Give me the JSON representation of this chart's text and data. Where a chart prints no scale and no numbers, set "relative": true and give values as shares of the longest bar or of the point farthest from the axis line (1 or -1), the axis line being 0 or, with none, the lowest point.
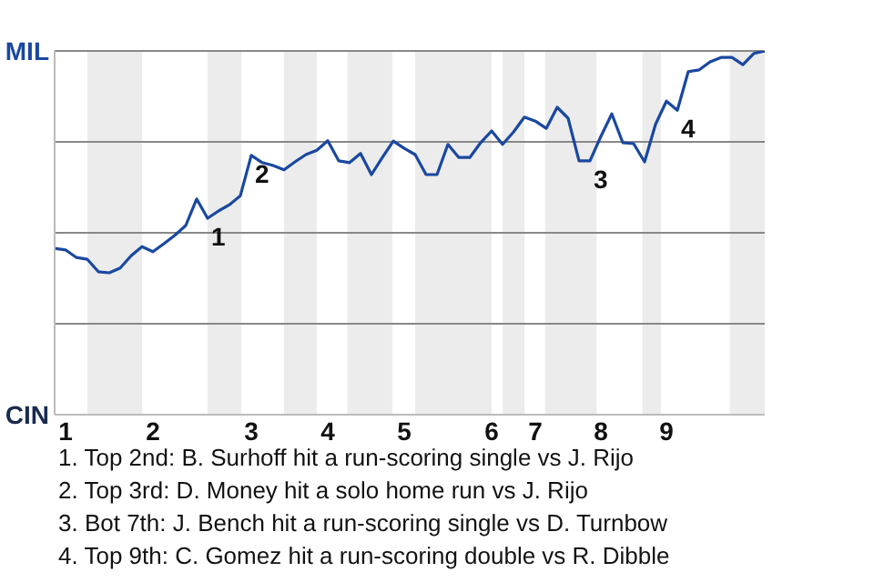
{
  "chart_data": {
    "type": "line",
    "relative": true,
    "categories": [
      null,
      "1",
      null,
      null,
      null,
      null,
      null,
      null,
      null,
      "2",
      null,
      null,
      null,
      null,
      null,
      null,
      null,
      null,
      "3",
      null,
      null,
      null,
      null,
      null,
      null,
      "4",
      null,
      null,
      null,
      null,
      null,
      null,
      "5",
      null,
      null,
      null,
      null,
      null,
      null,
      null,
      "6",
      null,
      null,
      null,
      "7",
      null,
      null,
      null,
      null,
      null,
      "8",
      null,
      null,
      null,
      null,
      null,
      "9",
      null,
      null,
      null,
      null,
      null,
      null,
      null,
      null,
      null
    ],
    "series": [
      {
        "color": "#1a48a0",
        "values": [
          0.457,
          0.453,
          0.432,
          0.427,
          0.393,
          0.39,
          0.403,
          0.437,
          0.462,
          0.448,
          0.47,
          0.493,
          0.52,
          0.593,
          0.54,
          0.56,
          0.577,
          0.602,
          0.713,
          0.693,
          0.685,
          0.673,
          0.695,
          0.715,
          0.727,
          0.753,
          0.698,
          0.693,
          0.718,
          0.66,
          0.707,
          0.752,
          0.732,
          0.715,
          0.66,
          0.66,
          0.743,
          0.707,
          0.707,
          0.748,
          0.78,
          0.743,
          0.777,
          0.818,
          0.807,
          0.787,
          0.845,
          0.815,
          0.698,
          0.698,
          0.765,
          0.827,
          0.748,
          0.745,
          0.695,
          0.798,
          0.862,
          0.837,
          0.943,
          0.948,
          0.97,
          0.982,
          0.982,
          0.962,
          0.993,
          1
        ]
      }
    ],
    "grid": "y",
    "marker": "none",
    "line_style": "solid",
    "annotations": [
      {
        "text": "1",
        "y": 0.54
      },
      {
        "text": "2",
        "y": 0.713
      },
      {
        "text": "3",
        "y": 0.698
      },
      {
        "text": "4",
        "y": 0.837
      },
      "MIL",
      "CIN",
      "1. Top 2nd: B. Surhoff hit a run-scoring single vs J. Rijo",
      "2. Top 3rd: D. Money hit a solo home run vs J. Rijo",
      "3. Bot 7th: J. Bench hit a run-scoring single vs D. Turnbow",
      "4. Top 9th: C. Gomez hit a run-scoring double vs R. Dibble"
    ]
  }
}
